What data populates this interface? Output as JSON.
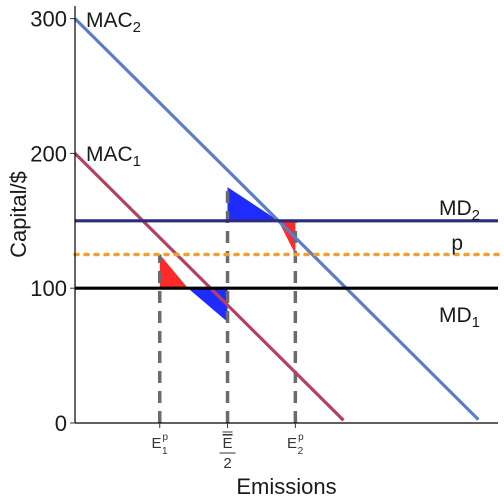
{
  "chart_data": {
    "type": "line",
    "title": "",
    "xlabel": "Emissions",
    "ylabel": "Capital/$",
    "xlim": [
      0,
      10
    ],
    "ylim": [
      0,
      300
    ],
    "yticks": [
      0,
      100,
      200,
      300
    ],
    "xticks": [
      {
        "x": 2.5,
        "base": "E",
        "sup": "p",
        "sub": "1",
        "overline": false
      },
      {
        "x": 4.5,
        "base": "E",
        "sup": "",
        "sub": "",
        "overline": true,
        "denominator": "2"
      },
      {
        "x": 6.5,
        "base": "E",
        "sup": "p",
        "sub": "2",
        "overline": false
      }
    ],
    "series": [
      {
        "name": "MAC",
        "sub": "2",
        "kind": "line",
        "points": [
          [
            0,
            300
          ],
          [
            12,
            0
          ]
        ],
        "color": "#5a7ec8"
      },
      {
        "name": "MAC",
        "sub": "1",
        "kind": "line",
        "points": [
          [
            0,
            200
          ],
          [
            8,
            0
          ]
        ],
        "color": "#b5415f"
      },
      {
        "name": "MD",
        "sub": "2",
        "kind": "hline",
        "y": 150,
        "color": "#2e2c78"
      },
      {
        "name": "p",
        "sub": "",
        "kind": "hline",
        "y": 125,
        "color": "#f0a032",
        "dash": "dotted"
      },
      {
        "name": "MD",
        "sub": "1",
        "kind": "hline",
        "y": 100,
        "color": "#000000"
      }
    ],
    "vlines": [
      {
        "x": 2.5,
        "ymax": 125
      },
      {
        "x": 4.5,
        "ymax": 175
      },
      {
        "x": 6.5,
        "ymax": 150
      }
    ],
    "shaded_regions": [
      {
        "points": [
          [
            2.5,
            125
          ],
          [
            2.5,
            100
          ],
          [
            3.333,
            100
          ]
        ],
        "color": "#ff2a2a"
      },
      {
        "points": [
          [
            3.333,
            100
          ],
          [
            4.5,
            100
          ],
          [
            4.5,
            75
          ]
        ],
        "color": "#1f2cff"
      },
      {
        "points": [
          [
            4.5,
            175
          ],
          [
            4.5,
            150
          ],
          [
            6.0,
            150
          ]
        ],
        "color": "#1f2cff"
      },
      {
        "points": [
          [
            6.0,
            150
          ],
          [
            6.5,
            150
          ],
          [
            6.5,
            125
          ]
        ],
        "color": "#ff2a2a"
      }
    ],
    "grid": false
  }
}
